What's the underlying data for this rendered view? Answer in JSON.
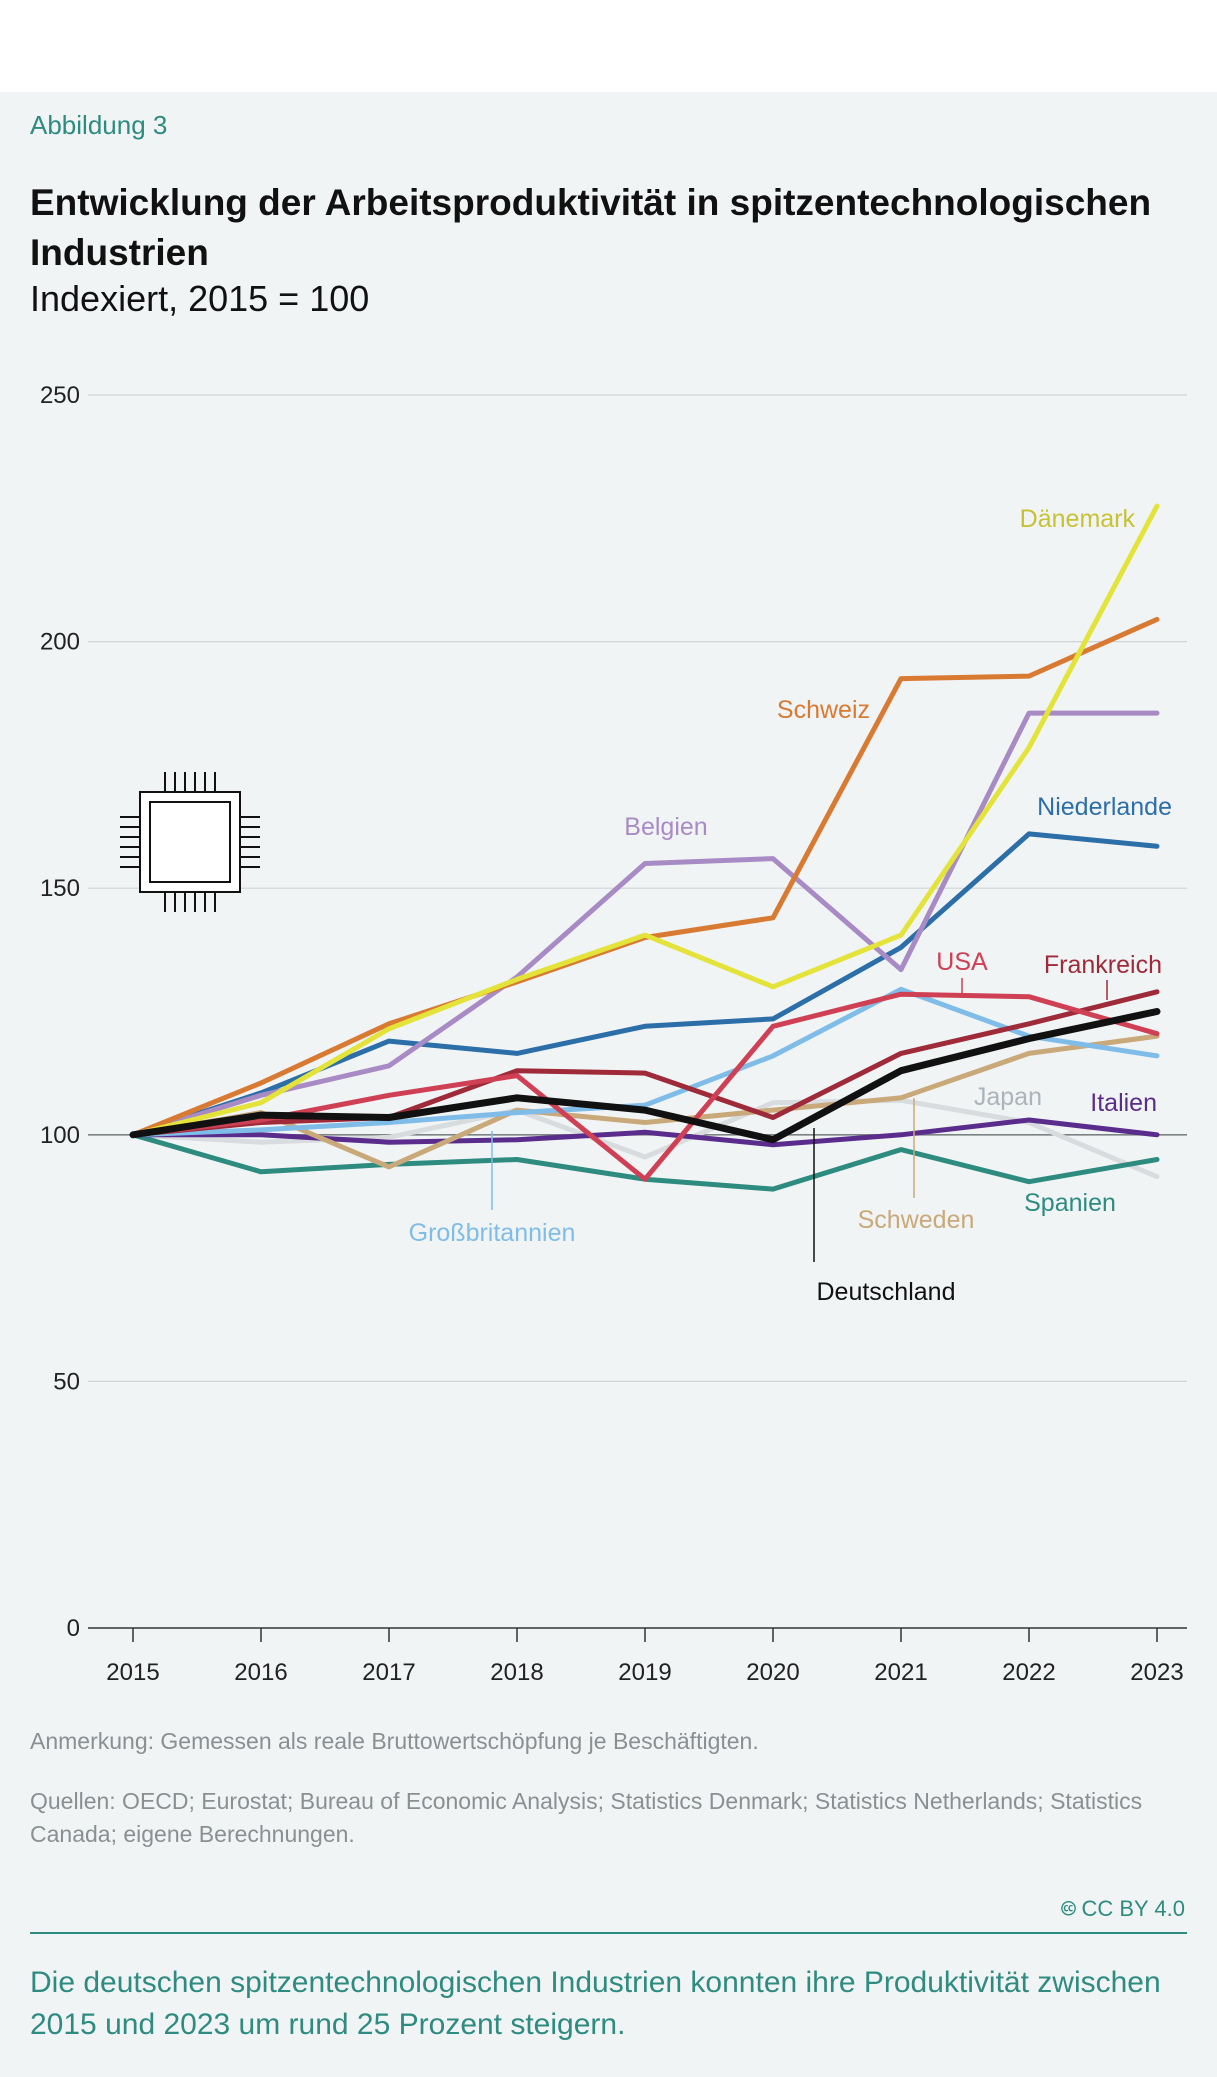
{
  "header": {
    "figure_label": "Abbildung 3",
    "title": "Entwicklung der Arbeitsproduktivität in spitzentechnologischen Industrien",
    "subtitle": "Indexiert, 2015 = 100"
  },
  "footer": {
    "note": "Anmerkung: Gemessen als reale Bruttowertschöpfung je Beschäftigten.",
    "sources": "Quellen: OECD; Eurostat; Bureau of Economic Analysis; Statistics Denmark; Statistics Netherlands; Statistics Canada; eigene Berechnungen.",
    "license": "CC BY 4.0",
    "summary": "Die deutschen spitzentechnologischen Industrien konnten ihre Produktivität zwischen 2015 und 2023 um rund 25 Prozent steigern."
  },
  "icons": {
    "chart_icon": "microchip-icon",
    "license_icon": "creative-commons-icon"
  },
  "chart_data": {
    "type": "line",
    "x": [
      2015,
      2016,
      2017,
      2018,
      2019,
      2020,
      2021,
      2022,
      2023
    ],
    "ylim": [
      0,
      250
    ],
    "yticks": [
      0,
      50,
      100,
      150,
      200,
      250
    ],
    "grid": true,
    "reference_line": 100,
    "series": [
      {
        "name": "Japan",
        "color": "#d8dcde",
        "values": [
          100,
          98.5,
          99.5,
          105,
          95.5,
          106.5,
          107,
          102.5,
          91.5
        ]
      },
      {
        "name": "Spanien",
        "color": "#2e8b80",
        "values": [
          100,
          92.5,
          94,
          95,
          91,
          89,
          97,
          90.5,
          95
        ]
      },
      {
        "name": "Italien",
        "color": "#5a2d8c",
        "values": [
          100,
          100,
          98.5,
          99,
          100.5,
          98,
          100,
          103,
          100
        ]
      },
      {
        "name": "Schweden",
        "color": "#c9a97a",
        "values": [
          100,
          104.5,
          93.5,
          105,
          102.5,
          105,
          107.5,
          116.5,
          120
        ]
      },
      {
        "name": "Großbritannien",
        "color": "#7fbde8",
        "values": [
          100,
          101,
          102.5,
          104.5,
          106,
          116,
          129.5,
          120,
          116
        ]
      },
      {
        "name": "Frankreich",
        "color": "#9e2a3a",
        "values": [
          100,
          102.5,
          103.5,
          113,
          112.5,
          103.5,
          116.5,
          122.5,
          129
        ]
      },
      {
        "name": "USA",
        "color": "#cf4054",
        "values": [
          100,
          103,
          108,
          112,
          91,
          122,
          128.5,
          128,
          120.5
        ]
      },
      {
        "name": "Niederlande",
        "color": "#2b6ea8",
        "values": [
          100,
          108.5,
          119,
          116.5,
          122,
          123.5,
          138,
          161,
          158.5
        ]
      },
      {
        "name": "Belgien",
        "color": "#a88bc4",
        "values": [
          100,
          108,
          114,
          132,
          155,
          156,
          133.5,
          185.5,
          185.5
        ]
      },
      {
        "name": "Schweiz",
        "color": "#d97a33",
        "values": [
          100,
          110.5,
          122.5,
          131,
          140,
          144,
          192.5,
          193,
          204.5
        ]
      },
      {
        "name": "Dänemark",
        "color": "#e3e33a",
        "values": [
          100,
          106.5,
          121.5,
          131.5,
          140.5,
          130,
          140.5,
          178.5,
          227.5
        ]
      },
      {
        "name": "Deutschland",
        "color": "#111111",
        "values": [
          100,
          104,
          103.5,
          107.5,
          105,
          99,
          113,
          119.5,
          125
        ]
      }
    ]
  }
}
